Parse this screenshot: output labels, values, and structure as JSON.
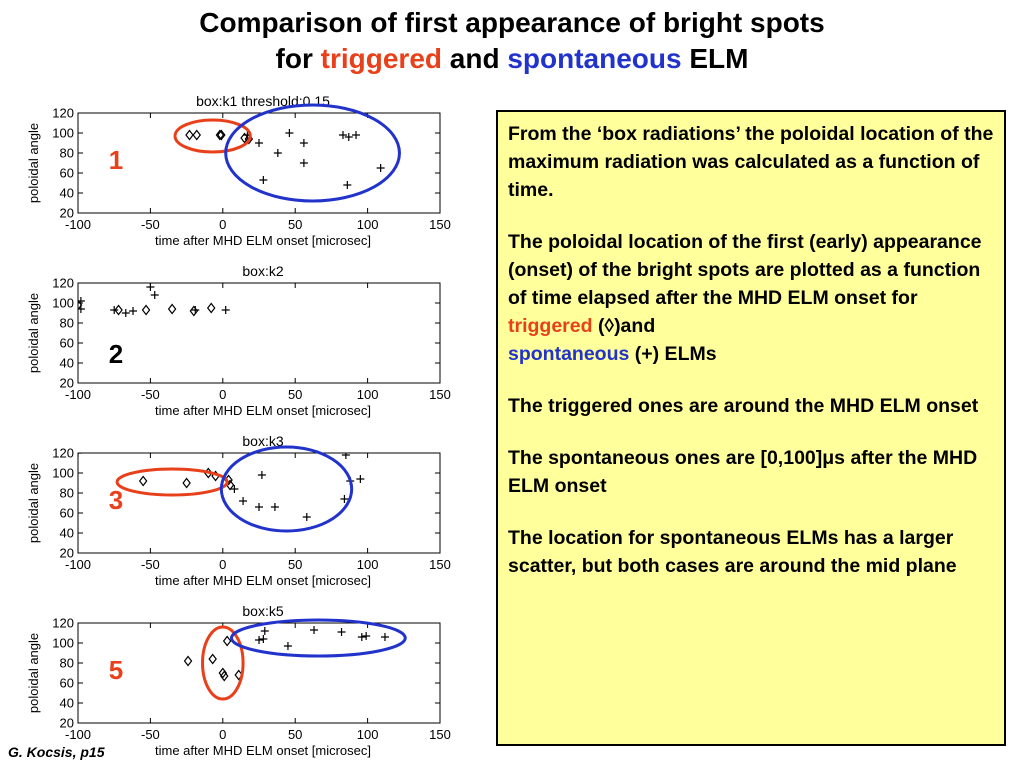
{
  "title": {
    "line1": "Comparison of first appearance of bright spots",
    "line2_prefix": "for",
    "triggered": "triggered",
    "and": "and",
    "spontaneous": "spontaneous",
    "suffix": "ELM"
  },
  "textbox": {
    "p1": "From the ‘box radiations’ the poloidal location of the maximum radiation  was calculated as a function of time.",
    "p2": "The poloidal location of the first (early) appearance (onset) of the bright spots are plotted as a function of time elapsed after the MHD ELM onset for",
    "triggered_word": "triggered",
    "triggered_marker": "(◊)and",
    "spontaneous_word": "spontaneous",
    "spontaneous_marker": "(+) ELMs",
    "p3": "The triggered ones are around the  MHD ELM onset",
    "p4": "The spontaneous ones are [0,100]μs after the MHD ELM onset",
    "p5": "The location for spontaneous ELMs has a larger scatter, but both cases are around the mid plane"
  },
  "footer": "G. Kocsis,  p15",
  "colors": {
    "triggered": "#e8401a",
    "spontaneous": "#2233cc",
    "textbox_bg": "#ffff9c"
  },
  "chart_data": [
    {
      "type": "scatter",
      "title": "box:k1 threshold:0.15",
      "panel_label": "1",
      "xlabel": "time after MHD ELM onset [microsec]",
      "ylabel": "poloidal angle",
      "xlim": [
        -100,
        150
      ],
      "ylim": [
        20,
        120
      ],
      "xticks": [
        -100,
        -50,
        0,
        50,
        100,
        150
      ],
      "yticks": [
        20,
        40,
        60,
        80,
        100,
        120
      ],
      "series": [
        {
          "marker": "diamond",
          "points": [
            [
              -23,
              98
            ],
            [
              -18,
              98
            ],
            [
              -2,
              98
            ],
            [
              -1,
              98
            ],
            [
              15,
              95
            ],
            [
              18,
              94
            ]
          ]
        },
        {
          "marker": "plus",
          "points": [
            [
              17,
              98
            ],
            [
              25,
              90
            ],
            [
              28,
              53
            ],
            [
              38,
              80
            ],
            [
              46,
              100
            ],
            [
              56,
              90
            ],
            [
              56,
              70
            ],
            [
              83,
              98
            ],
            [
              86,
              48
            ],
            [
              87,
              96
            ],
            [
              92,
              98
            ],
            [
              109,
              65
            ]
          ]
        }
      ],
      "ellipses": [
        {
          "color": "#e8401a",
          "cx": -7,
          "cy": 97,
          "rx": 26,
          "ry": 16
        },
        {
          "color": "#2233cc",
          "cx": 62,
          "cy": 80,
          "rx": 60,
          "ry": 48
        }
      ]
    },
    {
      "type": "scatter",
      "title": "box:k2",
      "panel_label": "2",
      "xlabel": "time after MHD ELM onset [microsec]",
      "ylabel": "poloidal angle",
      "xlim": [
        -100,
        150
      ],
      "ylim": [
        20,
        120
      ],
      "xticks": [
        -100,
        -50,
        0,
        50,
        100,
        150
      ],
      "yticks": [
        20,
        40,
        60,
        80,
        100,
        120
      ],
      "series": [
        {
          "marker": "diamond",
          "points": [
            [
              -100,
              98
            ],
            [
              -72,
              93
            ],
            [
              -53,
              93
            ],
            [
              -35,
              94
            ],
            [
              -20,
              92
            ],
            [
              -8,
              95
            ]
          ]
        },
        {
          "marker": "plus",
          "points": [
            [
              -98,
              102
            ],
            [
              -98,
              94
            ],
            [
              -75,
              93
            ],
            [
              -67,
              90
            ],
            [
              -62,
              92
            ],
            [
              -50,
              116
            ],
            [
              -47,
              108
            ],
            [
              -19,
              93
            ],
            [
              2,
              93
            ]
          ]
        }
      ],
      "ellipses": []
    },
    {
      "type": "scatter",
      "title": "box:k3",
      "panel_label": "3",
      "xlabel": "time after MHD ELM onset [microsec]",
      "ylabel": "poloidal angle",
      "xlim": [
        -100,
        150
      ],
      "ylim": [
        20,
        120
      ],
      "xticks": [
        -100,
        -50,
        0,
        50,
        100,
        150
      ],
      "yticks": [
        20,
        40,
        60,
        80,
        100,
        120
      ],
      "series": [
        {
          "marker": "diamond",
          "points": [
            [
              -55,
              92
            ],
            [
              -25,
              90
            ],
            [
              -10,
              100
            ],
            [
              -5,
              97
            ],
            [
              4,
              93
            ],
            [
              5,
              88
            ]
          ]
        },
        {
          "marker": "plus",
          "points": [
            [
              -100,
              120
            ],
            [
              8,
              84
            ],
            [
              14,
              72
            ],
            [
              25,
              66
            ],
            [
              27,
              98
            ],
            [
              36,
              66
            ],
            [
              58,
              56
            ],
            [
              84,
              74
            ],
            [
              85,
              118
            ],
            [
              88,
              92
            ],
            [
              95,
              94
            ]
          ]
        }
      ],
      "ellipses": [
        {
          "color": "#e8401a",
          "cx": -35,
          "cy": 91,
          "rx": 38,
          "ry": 13
        },
        {
          "color": "#2233cc",
          "cx": 44,
          "cy": 84,
          "rx": 45,
          "ry": 42
        }
      ]
    },
    {
      "type": "scatter",
      "title": "box:k5",
      "panel_label": "5",
      "xlabel": "time after MHD ELM onset [microsec]",
      "ylabel": "poloidal angle",
      "xlim": [
        -100,
        150
      ],
      "ylim": [
        20,
        120
      ],
      "xticks": [
        -100,
        -50,
        0,
        50,
        100,
        150
      ],
      "yticks": [
        20,
        40,
        60,
        80,
        100,
        120
      ],
      "series": [
        {
          "marker": "diamond",
          "points": [
            [
              -24,
              82
            ],
            [
              -7,
              84
            ],
            [
              0,
              70
            ],
            [
              1,
              67
            ],
            [
              3,
              102
            ],
            [
              11,
              68
            ]
          ]
        },
        {
          "marker": "plus",
          "points": [
            [
              25,
              103
            ],
            [
              28,
              104
            ],
            [
              29,
              112
            ],
            [
              45,
              97
            ],
            [
              63,
              113
            ],
            [
              82,
              111
            ],
            [
              96,
              106
            ],
            [
              99,
              107
            ],
            [
              112,
              106
            ]
          ]
        }
      ],
      "ellipses": [
        {
          "color": "#e8401a",
          "cx": 0,
          "cy": 80,
          "rx": 14,
          "ry": 36
        },
        {
          "color": "#2233cc",
          "cx": 66,
          "cy": 105,
          "rx": 60,
          "ry": 18
        }
      ]
    }
  ]
}
